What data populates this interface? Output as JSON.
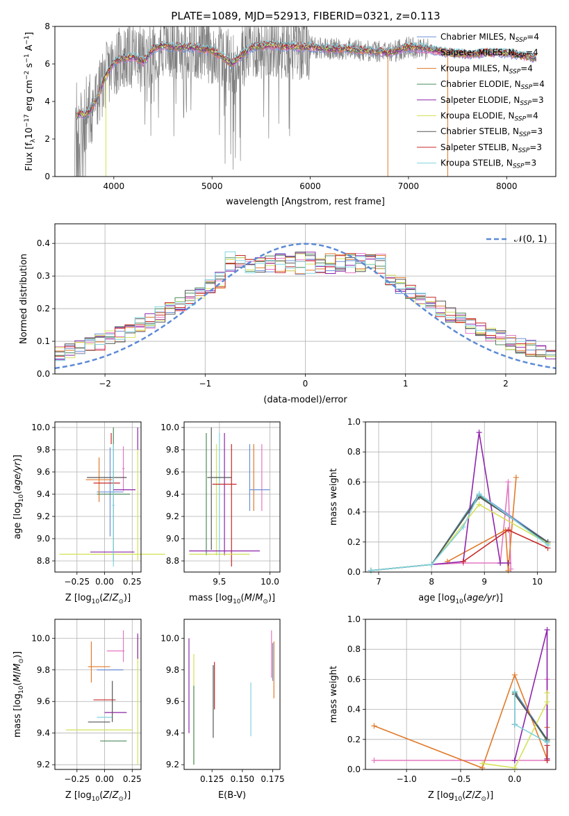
{
  "figure_title": "PLATE=1089, MJD=52913, FIBERID=0321, z=0.113",
  "legend_labels": [
    "Chabrier MILES, N_SSP=4",
    "Salpeter MILES, N_SSP=4",
    "Kroupa MILES, N_SSP=4",
    "Chabrier ELODIE, N_SSP=4",
    "Salpeter ELODIE, N_SSP=3",
    "Kroupa ELODIE, N_SSP=4",
    "Chabrier STELIB, N_SSP=3",
    "Salpeter STELIB, N_SSP=3",
    "Kroupa STELIB, N_SSP=3"
  ],
  "model_colors": [
    "#6a8fd8",
    "#e377c2",
    "#e07a2a",
    "#4c8a5c",
    "#8e24aa",
    "#d4e157",
    "#555555",
    "#c62828",
    "#7fd3e0"
  ],
  "chart_data": [
    {
      "id": "spectrum",
      "type": "line",
      "title": "PLATE=1089, MJD=52913, FIBERID=0321, z=0.113",
      "xlabel": "wavelength [Angstrom, rest frame]",
      "ylabel": "Flux [f_λ 10^-17 erg cm^-2 s^-1 A^-1]",
      "xlim": [
        3400,
        8500
      ],
      "ylim": [
        0,
        8
      ],
      "xticks": [
        "4000",
        "5000",
        "6000",
        "7000",
        "8000"
      ],
      "yticks": [
        "0",
        "2",
        "4",
        "6",
        "8"
      ],
      "grid": false,
      "legend_position": "right",
      "model_continuum": {
        "x": [
          3600,
          3650,
          3700,
          3750,
          3800,
          3850,
          3900,
          3950,
          4000,
          4100,
          4200,
          4300,
          4400,
          4500,
          4600,
          4800,
          5000,
          5100,
          5200,
          5400,
          5600,
          5800,
          6000,
          6200,
          6400,
          6600,
          6800,
          7000,
          7200,
          7400,
          7600,
          7800,
          8000,
          8200,
          8300
        ],
        "y": [
          3.0,
          3.4,
          3.3,
          3.5,
          3.9,
          4.4,
          5.2,
          5.6,
          6.1,
          6.3,
          6.4,
          6.1,
          6.8,
          7.0,
          6.9,
          6.9,
          6.7,
          6.4,
          6.0,
          6.9,
          7.0,
          6.9,
          6.9,
          6.8,
          6.8,
          6.7,
          6.6,
          6.9,
          6.8,
          6.6,
          6.5,
          6.6,
          6.6,
          6.4,
          6.3
        ]
      },
      "observed_range": [
        3600,
        8300
      ]
    },
    {
      "id": "residuals",
      "type": "line",
      "xlabel": "(data-model)/error",
      "ylabel": "Normed distribution",
      "xlim": [
        -2.5,
        2.5
      ],
      "ylim": [
        0,
        0.46
      ],
      "xticks": [
        "−2",
        "−1",
        "0",
        "1",
        "2"
      ],
      "yticks": [
        "0.0",
        "0.1",
        "0.2",
        "0.3",
        "0.4"
      ],
      "grid": true,
      "legend": "𝒩(0, 1)",
      "legend_position": "top-right",
      "reference_series": "N(0,1) normal density",
      "hist_bins": 50
    },
    {
      "id": "age-Z",
      "type": "scatter",
      "xlabel": "Z [log10(Z/Z⊙)]",
      "ylabel": "age  [log10(age/yr)]",
      "xlim": [
        -0.45,
        0.33
      ],
      "ylim": [
        8.7,
        10.05
      ],
      "xticks": [
        "−0.25",
        "0.00",
        "0.25"
      ],
      "yticks": [
        "8.8",
        "9.0",
        "9.2",
        "9.4",
        "9.6",
        "9.8",
        "10.0"
      ],
      "grid": true,
      "points": [
        {
          "x": 0.05,
          "y": 9.42,
          "xerr": 0.12,
          "yerr": 0.4,
          "model": 0
        },
        {
          "x": 0.17,
          "y": 9.63,
          "xerr": 0.01,
          "yerr": 0.2,
          "model": 1
        },
        {
          "x": -0.05,
          "y": 9.53,
          "xerr": 0.12,
          "yerr": 0.2,
          "model": 2
        },
        {
          "x": 0.08,
          "y": 9.4,
          "xerr": 0.15,
          "yerr": 0.6,
          "model": 3
        },
        {
          "x": 0.07,
          "y": 8.88,
          "xerr": 0.2,
          "yerr": 0.0,
          "model": 4
        },
        {
          "x": 0.07,
          "y": 8.86,
          "xerr": 0.48,
          "yerr": 0.0,
          "model": 5
        },
        {
          "x": 0.02,
          "y": 9.55,
          "xerr": 0.18,
          "yerr": 0.0,
          "model": 6
        },
        {
          "x": 0.02,
          "y": 9.5,
          "xerr": 0.12,
          "yerr": 0.0,
          "model": 7
        },
        {
          "x": 0.08,
          "y": 9.3,
          "xerr": 0.01,
          "yerr": 0.55,
          "model": 8
        },
        {
          "x": 0.3,
          "y": 9.9,
          "xerr": 0.0,
          "yerr": 0.1,
          "model": 4
        },
        {
          "x": 0.3,
          "y": 9.3,
          "xerr": 0.0,
          "yerr": 0.5,
          "model": 5
        },
        {
          "x": 0.06,
          "y": 9.9,
          "xerr": 0.0,
          "yerr": 0.05,
          "model": 7
        },
        {
          "x": 0.18,
          "y": 9.44,
          "xerr": 0.1,
          "yerr": 0.0,
          "model": 4
        }
      ]
    },
    {
      "id": "age-mass",
      "type": "scatter",
      "xlabel": "mass [log10(M/M⊙)]",
      "ylabel": "",
      "xlim": [
        9.15,
        10.1
      ],
      "ylim": [
        8.7,
        10.05
      ],
      "xticks": [
        "9.5",
        "10.0"
      ],
      "yticks": [
        "8.8",
        "9.0",
        "9.2",
        "9.4",
        "9.6",
        "9.8",
        "10.0"
      ],
      "grid": true,
      "points": [
        {
          "x": 9.37,
          "y": 9.4,
          "xerr": 0.0,
          "yerr": 0.55,
          "model": 3
        },
        {
          "x": 9.42,
          "y": 9.45,
          "xerr": 0.0,
          "yerr": 0.55,
          "model": 6
        },
        {
          "x": 9.5,
          "y": 9.4,
          "xerr": 0.0,
          "yerr": 0.55,
          "model": 8
        },
        {
          "x": 9.55,
          "y": 9.4,
          "xerr": 0.0,
          "yerr": 0.55,
          "model": 4
        },
        {
          "x": 9.47,
          "y": 9.35,
          "xerr": 0.0,
          "yerr": 0.5,
          "model": 5
        },
        {
          "x": 9.62,
          "y": 9.3,
          "xerr": 0.0,
          "yerr": 0.55,
          "model": 7
        },
        {
          "x": 9.8,
          "y": 9.55,
          "xerr": 0.0,
          "yerr": 0.3,
          "model": 0
        },
        {
          "x": 9.92,
          "y": 9.55,
          "xerr": 0.0,
          "yerr": 0.3,
          "model": 1
        },
        {
          "x": 9.84,
          "y": 9.55,
          "xerr": 0.0,
          "yerr": 0.3,
          "model": 2
        },
        {
          "x": 9.5,
          "y": 9.55,
          "xerr": 0.12,
          "yerr": 0.0,
          "model": 6
        },
        {
          "x": 9.55,
          "y": 9.49,
          "xerr": 0.12,
          "yerr": 0.0,
          "model": 7
        },
        {
          "x": 9.55,
          "y": 8.89,
          "xerr": 0.35,
          "yerr": 0.0,
          "model": 4
        },
        {
          "x": 9.5,
          "y": 8.86,
          "xerr": 0.3,
          "yerr": 0.0,
          "model": 5
        },
        {
          "x": 9.9,
          "y": 9.44,
          "xerr": 0.1,
          "yerr": 0.0,
          "model": 0
        }
      ]
    },
    {
      "id": "massweight-age",
      "type": "line",
      "xlabel": "age  [log10(age/yr)]",
      "ylabel": "mass weight",
      "xlim": [
        6.75,
        10.35
      ],
      "ylim": [
        0,
        1.0
      ],
      "xticks": [
        "7",
        "8",
        "9",
        "10"
      ],
      "yticks": [
        "0.0",
        "0.2",
        "0.4",
        "0.6",
        "0.8",
        "1.0"
      ],
      "grid": true,
      "series": [
        {
          "model": 0,
          "x": [
            6.85,
            8.0,
            8.9,
            10.2
          ],
          "y": [
            0.01,
            0.05,
            0.52,
            0.2
          ]
        },
        {
          "model": 1,
          "x": [
            8.0,
            8.6,
            9.3,
            9.45,
            9.5
          ],
          "y": [
            0.05,
            0.06,
            0.06,
            0.6,
            0.02
          ]
        },
        {
          "model": 2,
          "x": [
            8.3,
            9.4,
            9.45,
            9.6
          ],
          "y": [
            0.07,
            0.28,
            0.01,
            0.63
          ]
        },
        {
          "model": 3,
          "x": [
            6.85,
            8.0,
            8.9,
            10.2
          ],
          "y": [
            0.01,
            0.05,
            0.51,
            0.19
          ]
        },
        {
          "model": 4,
          "x": [
            8.0,
            8.6,
            8.9,
            9.3,
            9.45
          ],
          "y": [
            0.05,
            0.07,
            0.93,
            0.06,
            0.06
          ]
        },
        {
          "model": 5,
          "x": [
            6.85,
            8.0,
            8.9,
            10.2
          ],
          "y": [
            0.01,
            0.05,
            0.45,
            0.19
          ]
        },
        {
          "model": 6,
          "x": [
            6.85,
            8.0,
            8.9,
            10.2
          ],
          "y": [
            0.01,
            0.05,
            0.5,
            0.2
          ]
        },
        {
          "model": 7,
          "x": [
            8.6,
            9.45,
            10.2
          ],
          "y": [
            0.07,
            0.28,
            0.16
          ]
        },
        {
          "model": 8,
          "x": [
            6.85,
            8.0,
            8.6,
            8.9,
            10.2
          ],
          "y": [
            0.01,
            0.05,
            0.3,
            0.52,
            0.18
          ]
        }
      ]
    },
    {
      "id": "mass-Z",
      "type": "scatter",
      "xlabel": "Z [log10(Z/Z⊙)]",
      "ylabel": "mass [log10(M/M⊙)]",
      "xlim": [
        -0.45,
        0.33
      ],
      "ylim": [
        9.17,
        10.12
      ],
      "xticks": [
        "−0.25",
        "0.00",
        "0.25"
      ],
      "yticks": [
        "9.2",
        "9.4",
        "9.6",
        "9.8",
        "10.0"
      ],
      "grid": true,
      "points": [
        {
          "x": 0.05,
          "y": 9.8,
          "xerr": 0.12,
          "yerr": 0.0,
          "model": 0
        },
        {
          "x": 0.1,
          "y": 9.92,
          "xerr": 0.08,
          "yerr": 0.0,
          "model": 1
        },
        {
          "x": -0.05,
          "y": 9.82,
          "xerr": 0.1,
          "yerr": 0.0,
          "model": 2
        },
        {
          "x": 0.08,
          "y": 9.35,
          "xerr": 0.12,
          "yerr": 0.0,
          "model": 3
        },
        {
          "x": 0.1,
          "y": 9.53,
          "xerr": 0.1,
          "yerr": 0.0,
          "model": 4
        },
        {
          "x": -0.05,
          "y": 9.42,
          "xerr": 0.3,
          "yerr": 0.0,
          "model": 5
        },
        {
          "x": -0.05,
          "y": 9.47,
          "xerr": 0.1,
          "yerr": 0.0,
          "model": 6
        },
        {
          "x": 0.0,
          "y": 9.61,
          "xerr": 0.1,
          "yerr": 0.0,
          "model": 7
        },
        {
          "x": 0.0,
          "y": 9.5,
          "xerr": 0.07,
          "yerr": 0.0,
          "model": 8
        },
        {
          "x": -0.12,
          "y": 9.85,
          "xerr": 0.0,
          "yerr": 0.13,
          "model": 2
        },
        {
          "x": 0.07,
          "y": 9.6,
          "xerr": 0.0,
          "yerr": 0.13,
          "model": 6
        },
        {
          "x": 0.3,
          "y": 9.6,
          "xerr": 0.0,
          "yerr": 0.4,
          "model": 5
        },
        {
          "x": 0.3,
          "y": 9.95,
          "xerr": 0.0,
          "yerr": 0.08,
          "model": 4
        },
        {
          "x": 0.17,
          "y": 9.95,
          "xerr": 0.0,
          "yerr": 0.1,
          "model": 1
        }
      ]
    },
    {
      "id": "mass-EBV",
      "type": "scatter",
      "xlabel": "E(B-V)",
      "ylabel": "",
      "xlim": [
        0.102,
        0.181
      ],
      "ylim": [
        9.17,
        10.12
      ],
      "xticks": [
        "0.125",
        "0.150",
        "0.175"
      ],
      "yticks": [
        "9.2",
        "9.4",
        "9.6",
        "9.8",
        "10.0"
      ],
      "grid": false,
      "points": [
        {
          "x": 0.106,
          "y": 9.7,
          "xerr": 0.0,
          "yerr": 0.3,
          "model": 4
        },
        {
          "x": 0.11,
          "y": 9.55,
          "xerr": 0.0,
          "yerr": 0.35,
          "model": 5
        },
        {
          "x": 0.11,
          "y": 9.45,
          "xerr": 0.0,
          "yerr": 0.25,
          "model": 3
        },
        {
          "x": 0.126,
          "y": 9.6,
          "xerr": 0.0,
          "yerr": 0.23,
          "model": 6
        },
        {
          "x": 0.127,
          "y": 9.7,
          "xerr": 0.0,
          "yerr": 0.15,
          "model": 7
        },
        {
          "x": 0.157,
          "y": 9.55,
          "xerr": 0.0,
          "yerr": 0.17,
          "model": 8
        },
        {
          "x": 0.174,
          "y": 9.9,
          "xerr": 0.0,
          "yerr": 0.15,
          "model": 1
        },
        {
          "x": 0.176,
          "y": 9.8,
          "xerr": 0.0,
          "yerr": 0.18,
          "model": 2
        },
        {
          "x": 0.175,
          "y": 9.85,
          "xerr": 0.0,
          "yerr": 0.12,
          "model": 0
        }
      ]
    },
    {
      "id": "massweight-Z",
      "type": "line",
      "xlabel": "Z [log10(Z/Z⊙)]",
      "ylabel": "mass weight",
      "xlim": [
        -1.38,
        0.38
      ],
      "ylim": [
        0,
        1.0
      ],
      "xticks": [
        "−1.0",
        "−0.5",
        "0.0"
      ],
      "yticks": [
        "0.0",
        "0.2",
        "0.4",
        "0.6",
        "0.8",
        "1.0"
      ],
      "grid": true,
      "series": [
        {
          "model": 0,
          "x": [
            0.0,
            0.0,
            0.3,
            0.3
          ],
          "y": [
            0.3,
            0.52,
            0.2,
            0.06
          ]
        },
        {
          "model": 1,
          "x": [
            -1.3,
            0.3,
            0.3
          ],
          "y": [
            0.06,
            0.06,
            0.6
          ]
        },
        {
          "model": 2,
          "x": [
            -1.3,
            -0.3,
            0.0,
            0.3,
            0.3
          ],
          "y": [
            0.29,
            0.01,
            0.63,
            0.07,
            0.28
          ]
        },
        {
          "model": 3,
          "x": [
            0.0,
            0.0,
            0.3
          ],
          "y": [
            0.3,
            0.51,
            0.19
          ]
        },
        {
          "model": 4,
          "x": [
            0.0,
            0.0,
            0.3,
            0.3
          ],
          "y": [
            0.06,
            0.06,
            0.93,
            0.07
          ]
        },
        {
          "model": 5,
          "x": [
            -0.3,
            0.0,
            0.3,
            0.3
          ],
          "y": [
            0.04,
            0.01,
            0.45,
            0.51
          ]
        },
        {
          "model": 6,
          "x": [
            0.0,
            0.0,
            0.3
          ],
          "y": [
            0.3,
            0.5,
            0.2
          ]
        },
        {
          "model": 7,
          "x": [
            0.3,
            0.3
          ],
          "y": [
            0.16,
            0.06
          ]
        },
        {
          "model": 8,
          "x": [
            0.0,
            0.0,
            0.3
          ],
          "y": [
            0.52,
            0.3,
            0.18
          ]
        }
      ]
    }
  ]
}
